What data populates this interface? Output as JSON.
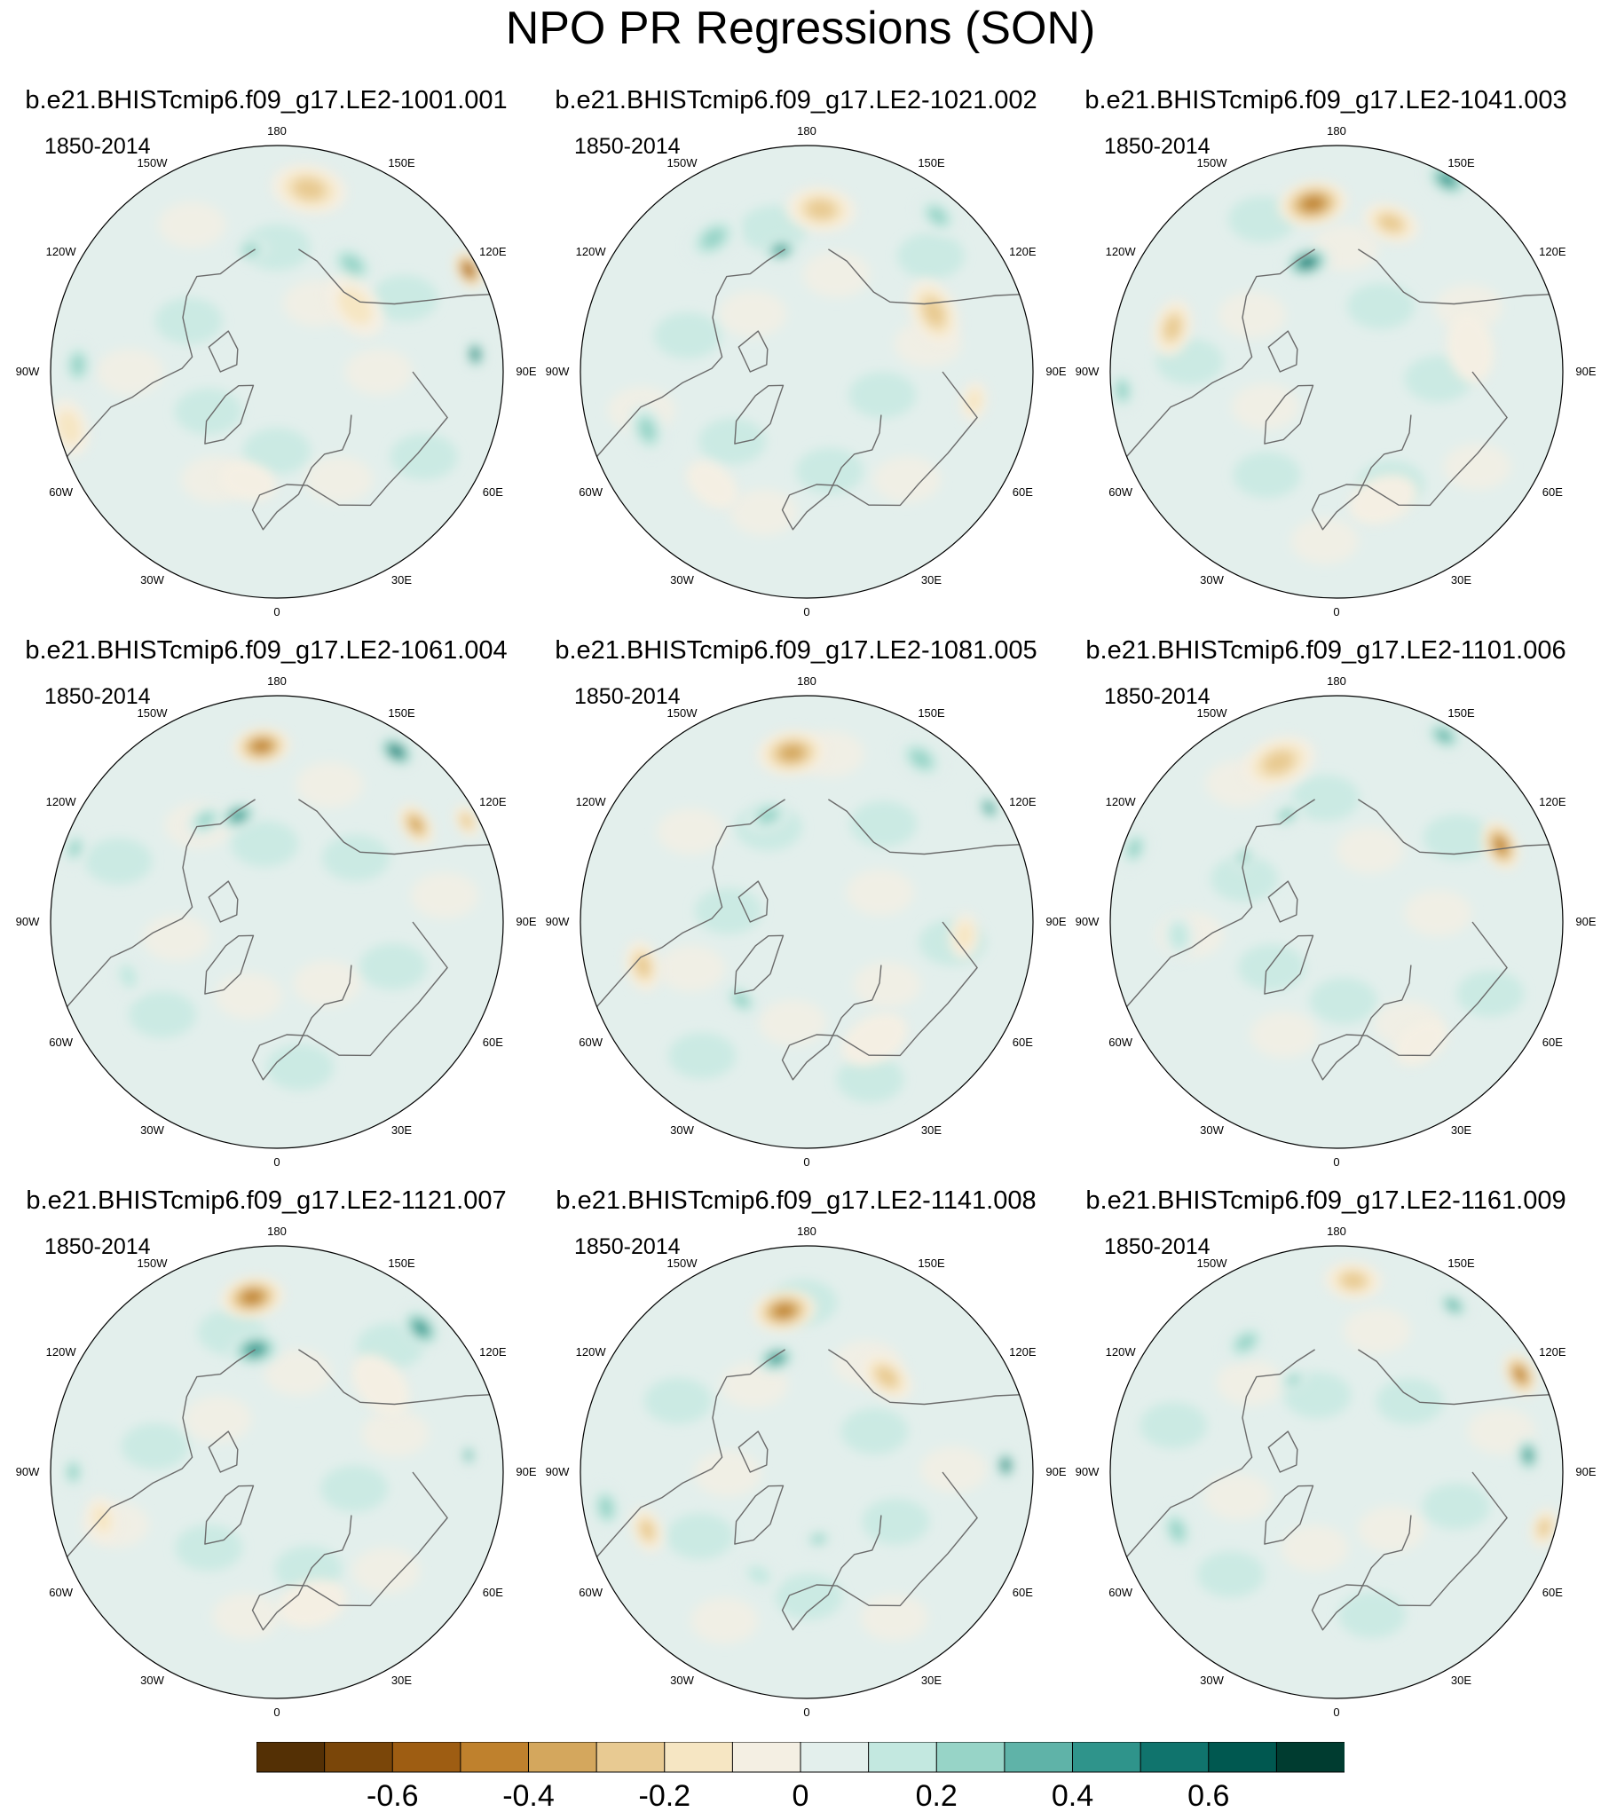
{
  "figure": {
    "title": "NPO PR Regressions (SON)",
    "variable": "PR",
    "season": "SON"
  },
  "projection": {
    "type": "north polar stereographic",
    "longitude_labels": [
      "180",
      "150E",
      "120E",
      "90E",
      "60E",
      "30E",
      "0",
      "30W",
      "60W",
      "90W",
      "120W",
      "150W"
    ]
  },
  "panels": [
    {
      "title": "b.e21.BHISTcmip6.f09_g17.LE2-1001.001",
      "period": "1850-2014",
      "features": [
        {
          "lon": 170,
          "colat": 0.82,
          "value": -0.3,
          "spread": 0.13
        },
        {
          "lon": 145,
          "colat": 0.58,
          "value": 0.3,
          "spread": 0.09
        },
        {
          "lon": -168,
          "colat": 0.55,
          "value": 0.35,
          "spread": 0.06
        },
        {
          "lon": 118,
          "colat": 0.96,
          "value": -0.55,
          "spread": 0.07
        },
        {
          "lon": 95,
          "colat": 0.88,
          "value": 0.55,
          "spread": 0.05
        },
        {
          "lon": 130,
          "colat": 0.45,
          "value": -0.2,
          "spread": 0.12
        },
        {
          "lon": -92,
          "colat": 0.88,
          "value": 0.25,
          "spread": 0.08
        },
        {
          "lon": -75,
          "colat": 0.95,
          "value": -0.2,
          "spread": 0.1
        },
        {
          "lon": -15,
          "colat": 0.5,
          "value": -0.15,
          "spread": 0.1
        }
      ]
    },
    {
      "title": "b.e21.BHISTcmip6.f09_g17.LE2-1021.002",
      "period": "1850-2014",
      "features": [
        {
          "lon": 175,
          "colat": 0.72,
          "value": -0.3,
          "spread": 0.12
        },
        {
          "lon": 140,
          "colat": 0.9,
          "value": 0.3,
          "spread": 0.08
        },
        {
          "lon": -168,
          "colat": 0.55,
          "value": 0.45,
          "spread": 0.06
        },
        {
          "lon": 115,
          "colat": 0.62,
          "value": -0.3,
          "spread": 0.12
        },
        {
          "lon": -145,
          "colat": 0.72,
          "value": 0.25,
          "spread": 0.1
        },
        {
          "lon": -70,
          "colat": 0.75,
          "value": 0.25,
          "spread": 0.09
        },
        {
          "lon": -40,
          "colat": 0.65,
          "value": -0.15,
          "spread": 0.1
        },
        {
          "lon": 80,
          "colat": 0.75,
          "value": -0.2,
          "spread": 0.07
        }
      ]
    },
    {
      "title": "b.e21.BHISTcmip6.f09_g17.LE2-1041.003",
      "period": "1850-2014",
      "features": [
        {
          "lon": -172,
          "colat": 0.75,
          "value": -0.5,
          "spread": 0.12
        },
        {
          "lon": 160,
          "colat": 0.7,
          "value": -0.25,
          "spread": 0.1
        },
        {
          "lon": -165,
          "colat": 0.5,
          "value": 0.55,
          "spread": 0.08
        },
        {
          "lon": 150,
          "colat": 0.98,
          "value": 0.45,
          "spread": 0.08
        },
        {
          "lon": -105,
          "colat": 0.75,
          "value": -0.3,
          "spread": 0.1
        },
        {
          "lon": -85,
          "colat": 0.95,
          "value": 0.3,
          "spread": 0.07
        },
        {
          "lon": 100,
          "colat": 0.6,
          "value": -0.15,
          "spread": 0.12
        },
        {
          "lon": 20,
          "colat": 0.6,
          "value": -0.15,
          "spread": 0.12
        }
      ]
    },
    {
      "title": "b.e21.BHISTcmip6.f09_g17.LE2-1061.004",
      "period": "1850-2014",
      "features": [
        {
          "lon": -175,
          "colat": 0.78,
          "value": -0.45,
          "spread": 0.1
        },
        {
          "lon": 145,
          "colat": 0.92,
          "value": 0.55,
          "spread": 0.07
        },
        {
          "lon": 125,
          "colat": 0.75,
          "value": -0.4,
          "spread": 0.08
        },
        {
          "lon": -160,
          "colat": 0.5,
          "value": 0.5,
          "spread": 0.07
        },
        {
          "lon": -145,
          "colat": 0.55,
          "value": 0.3,
          "spread": 0.07
        },
        {
          "lon": -110,
          "colat": 0.95,
          "value": 0.3,
          "spread": 0.06
        },
        {
          "lon": -70,
          "colat": 0.7,
          "value": 0.2,
          "spread": 0.07
        },
        {
          "lon": 118,
          "colat": 0.95,
          "value": -0.3,
          "spread": 0.06
        }
      ]
    },
    {
      "title": "b.e21.BHISTcmip6.f09_g17.LE2-1081.005",
      "period": "1850-2014",
      "features": [
        {
          "lon": -175,
          "colat": 0.75,
          "value": -0.4,
          "spread": 0.12
        },
        {
          "lon": 145,
          "colat": 0.88,
          "value": 0.35,
          "spread": 0.09
        },
        {
          "lon": 122,
          "colat": 0.95,
          "value": 0.45,
          "spread": 0.05
        },
        {
          "lon": -160,
          "colat": 0.5,
          "value": 0.35,
          "spread": 0.08
        },
        {
          "lon": -75,
          "colat": 0.75,
          "value": -0.3,
          "spread": 0.09
        },
        {
          "lon": -40,
          "colat": 0.45,
          "value": 0.25,
          "spread": 0.07
        },
        {
          "lon": 30,
          "colat": 0.6,
          "value": -0.15,
          "spread": 0.12
        },
        {
          "lon": 85,
          "colat": 0.7,
          "value": -0.2,
          "spread": 0.08
        }
      ]
    },
    {
      "title": "b.e21.BHISTcmip6.f09_g17.LE2-1101.006",
      "period": "1850-2014",
      "features": [
        {
          "lon": -160,
          "colat": 0.75,
          "value": -0.35,
          "spread": 0.13
        },
        {
          "lon": 150,
          "colat": 0.95,
          "value": 0.4,
          "spread": 0.07
        },
        {
          "lon": 115,
          "colat": 0.8,
          "value": -0.45,
          "spread": 0.09
        },
        {
          "lon": -155,
          "colat": 0.52,
          "value": 0.35,
          "spread": 0.06
        },
        {
          "lon": -125,
          "colat": 0.5,
          "value": 0.3,
          "spread": 0.05
        },
        {
          "lon": -110,
          "colat": 0.95,
          "value": 0.25,
          "spread": 0.07
        },
        {
          "lon": -85,
          "colat": 0.7,
          "value": 0.2,
          "spread": 0.08
        },
        {
          "lon": 35,
          "colat": 0.65,
          "value": -0.15,
          "spread": 0.1
        }
      ]
    },
    {
      "title": "b.e21.BHISTcmip6.f09_g17.LE2-1121.007",
      "period": "1850-2014",
      "features": [
        {
          "lon": -172,
          "colat": 0.78,
          "value": -0.45,
          "spread": 0.11
        },
        {
          "lon": -170,
          "colat": 0.55,
          "value": 0.5,
          "spread": 0.09
        },
        {
          "lon": 135,
          "colat": 0.9,
          "value": 0.45,
          "spread": 0.08
        },
        {
          "lon": 130,
          "colat": 0.6,
          "value": -0.15,
          "spread": 0.12
        },
        {
          "lon": 95,
          "colat": 0.85,
          "value": 0.4,
          "spread": 0.04
        },
        {
          "lon": -90,
          "colat": 0.9,
          "value": 0.35,
          "spread": 0.06
        },
        {
          "lon": -75,
          "colat": 0.8,
          "value": -0.2,
          "spread": 0.08
        },
        {
          "lon": 15,
          "colat": 0.6,
          "value": -0.12,
          "spread": 0.12
        }
      ]
    },
    {
      "title": "b.e21.BHISTcmip6.f09_g17.LE2-1141.008",
      "period": "1850-2014",
      "features": [
        {
          "lon": -172,
          "colat": 0.72,
          "value": -0.45,
          "spread": 0.11
        },
        {
          "lon": -165,
          "colat": 0.52,
          "value": 0.45,
          "spread": 0.07
        },
        {
          "lon": 140,
          "colat": 0.55,
          "value": -0.3,
          "spread": 0.1
        },
        {
          "lon": 92,
          "colat": 0.88,
          "value": 0.55,
          "spread": 0.05
        },
        {
          "lon": -80,
          "colat": 0.9,
          "value": 0.3,
          "spread": 0.08
        },
        {
          "lon": -70,
          "colat": 0.75,
          "value": -0.25,
          "spread": 0.08
        },
        {
          "lon": 10,
          "colat": 0.3,
          "value": 0.3,
          "spread": 0.05
        },
        {
          "lon": -25,
          "colat": 0.5,
          "value": 0.2,
          "spread": 0.07
        }
      ]
    },
    {
      "title": "b.e21.BHISTcmip6.f09_g17.LE2-1161.009",
      "period": "1850-2014",
      "features": [
        {
          "lon": 175,
          "colat": 0.85,
          "value": -0.35,
          "spread": 0.1
        },
        {
          "lon": 118,
          "colat": 0.92,
          "value": -0.45,
          "spread": 0.08
        },
        {
          "lon": 145,
          "colat": 0.9,
          "value": 0.4,
          "spread": 0.06
        },
        {
          "lon": 95,
          "colat": 0.85,
          "value": 0.5,
          "spread": 0.06
        },
        {
          "lon": -145,
          "colat": 0.7,
          "value": 0.3,
          "spread": 0.08
        },
        {
          "lon": -155,
          "colat": 0.45,
          "value": 0.3,
          "spread": 0.05
        },
        {
          "lon": -70,
          "colat": 0.75,
          "value": 0.3,
          "spread": 0.08
        },
        {
          "lon": 75,
          "colat": 0.95,
          "value": -0.3,
          "spread": 0.07
        }
      ]
    }
  ],
  "colorbar": {
    "levels": [
      -0.7,
      -0.6,
      -0.5,
      -0.4,
      -0.3,
      -0.2,
      -0.1,
      0,
      0.1,
      0.2,
      0.3,
      0.4,
      0.5,
      0.6,
      0.7
    ],
    "colors": [
      "#543005",
      "#7a4609",
      "#9e5d12",
      "#bf812d",
      "#d4a75d",
      "#e8ca92",
      "#f6e6c3",
      "#f4efe3",
      "#e3efec",
      "#c3e8e0",
      "#97d4c7",
      "#5fb3a8",
      "#2f948b",
      "#10746d",
      "#005850",
      "#003c30"
    ],
    "tick_labels": [
      "-0.6",
      "-0.4",
      "-0.2",
      "0",
      "0.2",
      "0.4",
      "0.6"
    ],
    "tick_values": [
      -0.6,
      -0.4,
      -0.2,
      0,
      0.2,
      0.4,
      0.6
    ]
  }
}
